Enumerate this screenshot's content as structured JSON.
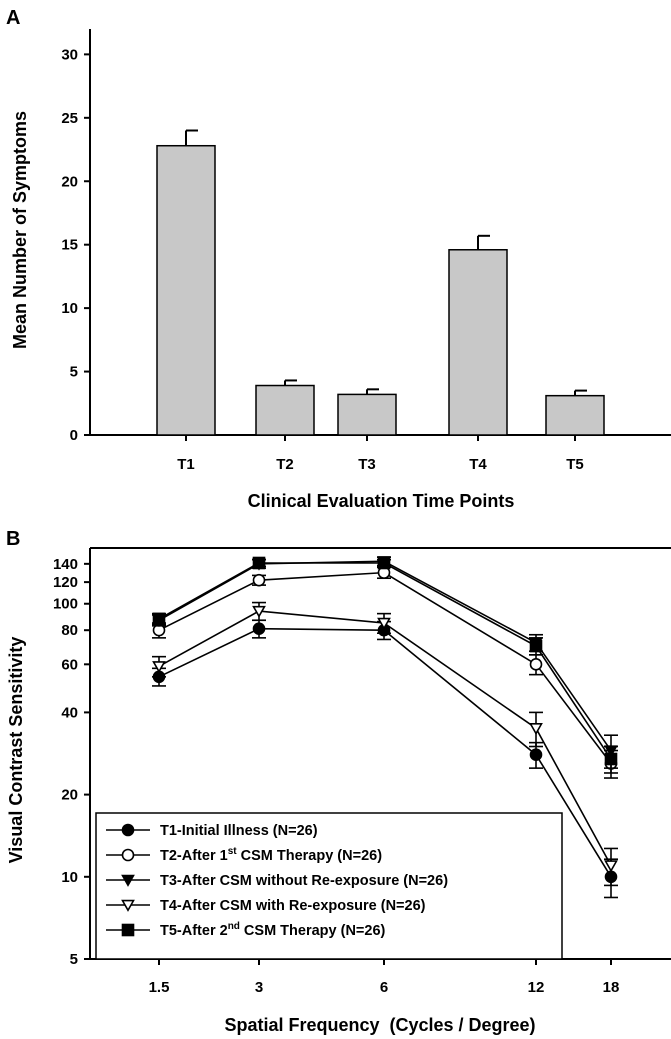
{
  "chart_data": [
    {
      "panel_label": "A",
      "type": "bar",
      "xlabel": "Clinical Evaluation Time Points",
      "ylabel": "Mean Number of Symptoms",
      "ylim": [
        0,
        32
      ],
      "yticks": [
        0,
        5,
        10,
        15,
        20,
        25,
        30
      ],
      "categories": [
        "T1",
        "T2",
        "T3",
        "T4",
        "T5"
      ],
      "values": [
        22.8,
        3.9,
        3.2,
        14.6,
        3.1
      ],
      "errors": [
        1.2,
        0.4,
        0.4,
        1.1,
        0.4
      ],
      "bar_color": "#c8c8c8"
    },
    {
      "panel_label": "B",
      "type": "line",
      "xlabel": "Spatial Frequency  (Cycles / Degree)",
      "ylabel": "Visual Contrast Sensitivity",
      "yscale": "log",
      "ylim": [
        5,
        160
      ],
      "yticks": [
        5,
        10,
        20,
        40,
        60,
        80,
        100,
        120,
        140
      ],
      "x_categories": [
        "1.5",
        "3",
        "6",
        "12",
        "18"
      ],
      "legend_position": "bottom-left",
      "series": [
        {
          "name": "T1-Initial Illness (N=26)",
          "marker": "filled-circle",
          "values": [
            54,
            81,
            80,
            28,
            10
          ],
          "errors": [
            4,
            6,
            6,
            3,
            1.6
          ]
        },
        {
          "name": "T2-After 1st CSM Therapy (N=26)",
          "name_main": "T2-After 1",
          "name_sup": "st",
          "name_rest": " CSM Therapy (N=26)",
          "marker": "open-circle",
          "values": [
            80,
            122,
            130,
            60,
            26
          ],
          "errors": [
            5,
            5,
            6,
            5,
            3
          ]
        },
        {
          "name": "T3-After CSM without Re-exposure (N=26)",
          "marker": "filled-triangle-down",
          "values": [
            87,
            140,
            143,
            72,
            29
          ],
          "errors": [
            4,
            5,
            5,
            5,
            4
          ]
        },
        {
          "name": "T4-After CSM with Re-exposure (N=26)",
          "marker": "open-triangle-down",
          "values": [
            59,
            94,
            85,
            35,
            11
          ],
          "errors": [
            5,
            7,
            7,
            5,
            1.7
          ]
        },
        {
          "name": "T5-After 2nd CSM Therapy (N=26)",
          "name_main": "T5-After 2",
          "name_sup": "nd",
          "name_rest": " CSM Therapy (N=26)",
          "marker": "filled-square",
          "values": [
            88,
            141,
            141,
            70,
            27
          ],
          "errors": [
            4,
            4,
            4,
            5,
            3
          ]
        }
      ]
    }
  ]
}
